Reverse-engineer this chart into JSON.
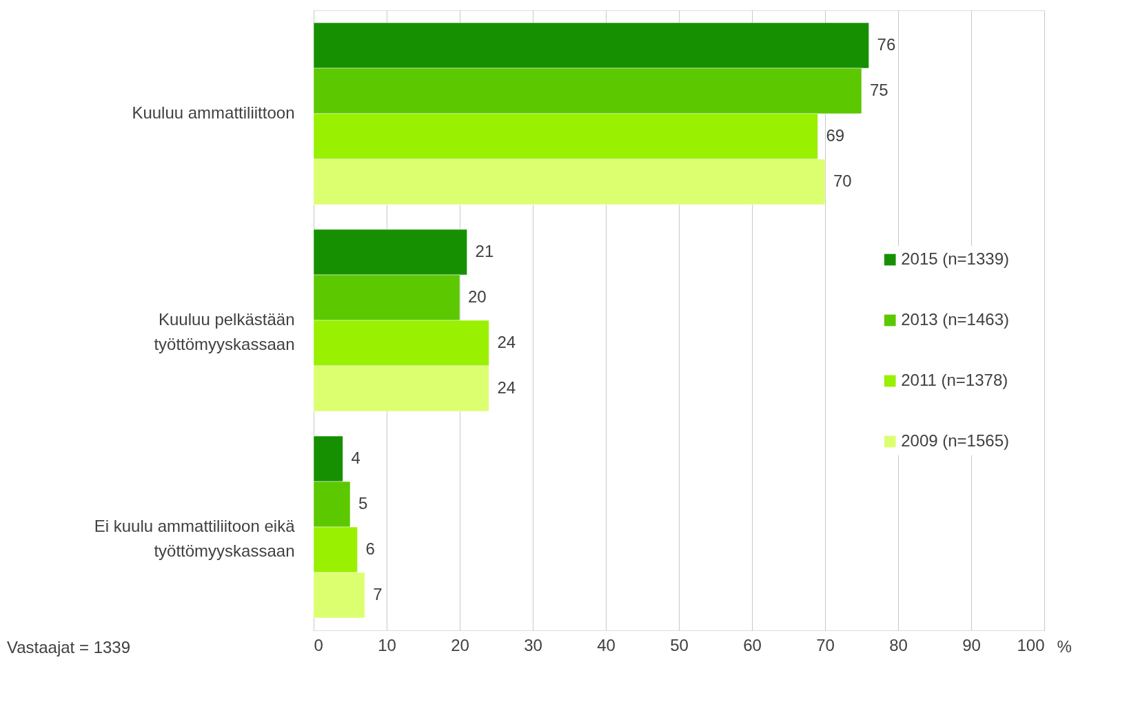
{
  "chart_data": {
    "type": "bar",
    "orientation": "horizontal",
    "xlabel": "%",
    "categories": [
      "Kuuluu ammattiliittoon",
      "Kuuluu pelkästään työttömyyskassaan",
      "Ei kuulu ammattiliitoon eikä työttömyyskassaan"
    ],
    "series": [
      {
        "name": "2015 (n=1339)",
        "color": "#169000",
        "values": [
          76,
          21,
          4
        ]
      },
      {
        "name": "2013 (n=1463)",
        "color": "#5cc800",
        "values": [
          75,
          20,
          5
        ]
      },
      {
        "name": "2011 (n=1378)",
        "color": "#99f000",
        "values": [
          69,
          24,
          6
        ]
      },
      {
        "name": "2009 (n=1565)",
        "color": "#dcff70",
        "values": [
          70,
          24,
          7
        ]
      }
    ],
    "xlim": [
      0,
      100
    ],
    "xticks": [
      0,
      10,
      20,
      30,
      40,
      50,
      60,
      70,
      80,
      90,
      100
    ],
    "grid": "x",
    "legend": "right",
    "data_labels": true,
    "annotations": [
      "Vastaajat = 1339"
    ]
  }
}
